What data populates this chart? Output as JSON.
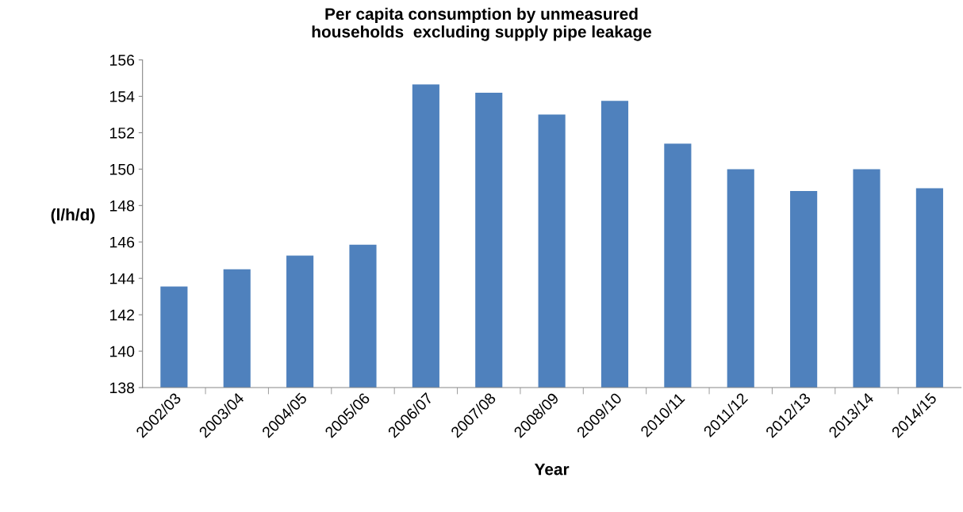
{
  "chart_data": {
    "type": "bar",
    "title": "Per capita consumption by unmeasured\nhouseholds  excluding supply pipe leakage",
    "xlabel": "Year",
    "ylabel": "(l/h/d)",
    "categories": [
      "2002/03",
      "2003/04",
      "2004/05",
      "2005/06",
      "2006/07",
      "2007/08",
      "2008/09",
      "2009/10",
      "2010/11",
      "2011/12",
      "2012/13",
      "2013/14",
      "2014/15"
    ],
    "values": [
      143.55,
      144.5,
      145.25,
      145.85,
      154.65,
      154.2,
      153.0,
      153.75,
      151.4,
      150.0,
      148.8,
      150.0,
      148.95
    ],
    "color": "#4f81bd",
    "ylim": [
      138,
      156
    ],
    "yticks": [
      138,
      140,
      142,
      144,
      146,
      148,
      150,
      152,
      154,
      156
    ],
    "grid": false,
    "legend": false
  }
}
